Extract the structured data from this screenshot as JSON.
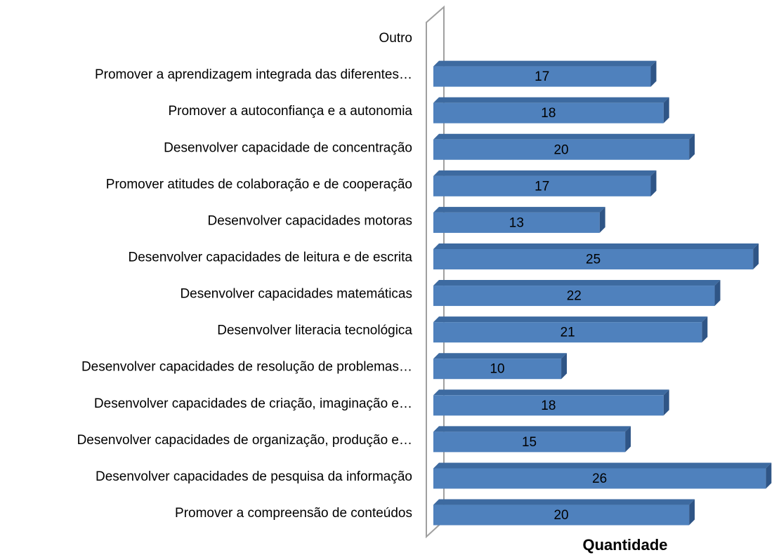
{
  "chart_data": {
    "type": "bar",
    "orientation": "horizontal",
    "x_axis_label": "Quantidade",
    "categories": [
      "Outro",
      "Promover a aprendizagem integrada das diferentes…",
      "Promover a autoconfiança e a autonomia",
      "Desenvolver capacidade de concentração",
      "Promover atitudes de colaboração e de cooperação",
      "Desenvolver capacidades motoras",
      "Desenvolver capacidades de leitura e de escrita",
      "Desenvolver capacidades matemáticas",
      "Desenvolver literacia tecnológica",
      "Desenvolver capacidades de resolução de problemas…",
      "Desenvolver capacidades de criação, imaginação e…",
      "Desenvolver capacidades de organização, produção e…",
      "Desenvolver capacidades de pesquisa da informação",
      "Promover a compreensão de conteúdos"
    ],
    "values": [
      null,
      17,
      18,
      20,
      17,
      13,
      25,
      22,
      21,
      10,
      18,
      15,
      26,
      20
    ],
    "color": "#4f81bd",
    "xlim": [
      0,
      26.2
    ]
  }
}
